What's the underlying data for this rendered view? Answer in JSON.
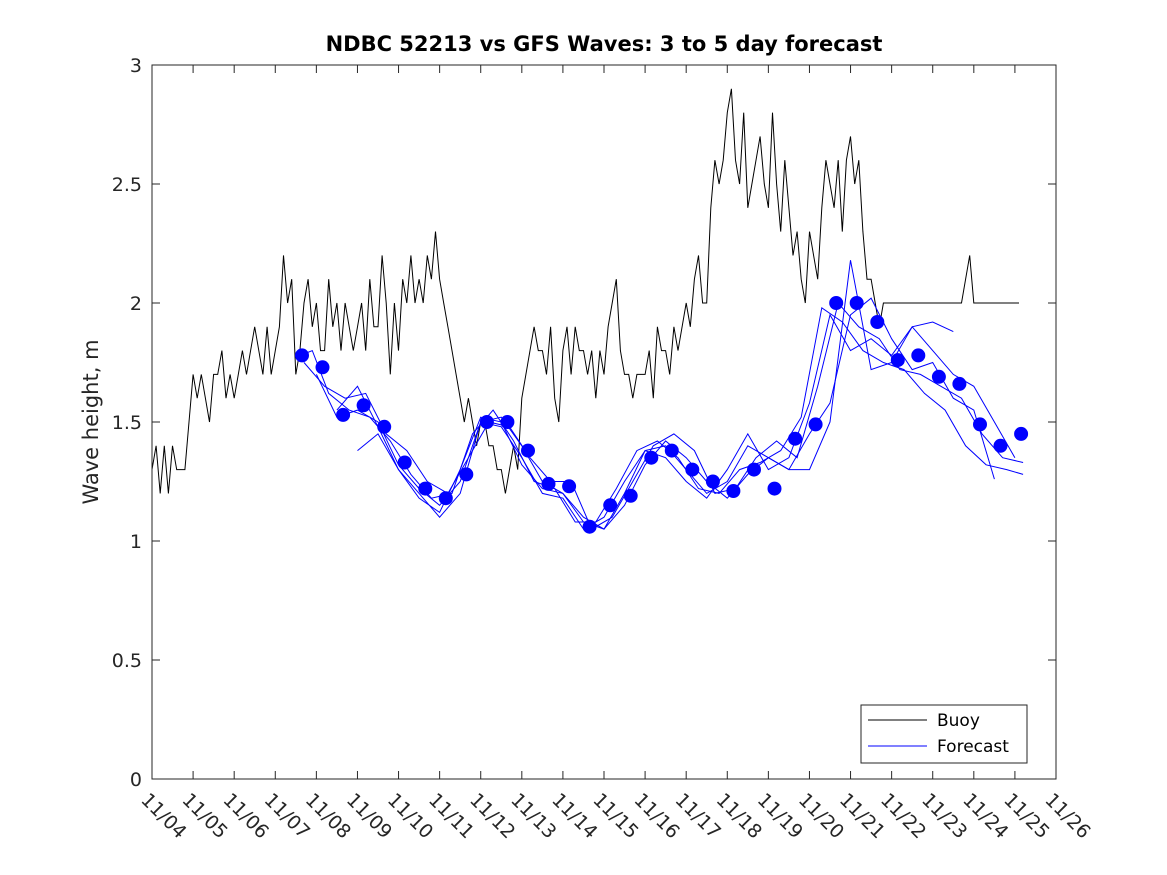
{
  "chart_data": {
    "type": "line",
    "title": "NDBC 52213 vs GFS Waves: 3 to 5 day forecast",
    "xlabel": "",
    "ylabel": "Wave height, m",
    "xlim": [
      0,
      22
    ],
    "ylim": [
      0,
      3
    ],
    "yticks": [
      "0",
      "0.5",
      "1",
      "1.5",
      "2",
      "2.5",
      "3"
    ],
    "xticks": [
      "11/04",
      "11/05",
      "11/06",
      "11/07",
      "11/08",
      "11/09",
      "11/10",
      "11/11",
      "11/12",
      "11/13",
      "11/14",
      "11/15",
      "11/16",
      "11/17",
      "11/18",
      "11/19",
      "11/20",
      "11/21",
      "11/22",
      "11/23",
      "11/24",
      "11/25",
      "11/26"
    ],
    "grid": false,
    "legend": {
      "position": "bottom-right",
      "entries": [
        "Buoy",
        "Forecast"
      ]
    },
    "colors": {
      "buoy": "#000000",
      "forecast": "#0000ff"
    },
    "series": [
      {
        "name": "Buoy",
        "x": [
          0,
          0.1,
          0.2,
          0.3,
          0.4,
          0.5,
          0.6,
          0.7,
          0.8,
          0.9,
          1.0,
          1.1,
          1.2,
          1.3,
          1.4,
          1.5,
          1.6,
          1.7,
          1.8,
          1.9,
          2.0,
          2.1,
          2.2,
          2.3,
          2.4,
          2.5,
          2.6,
          2.7,
          2.8,
          2.9,
          3.0,
          3.1,
          3.2,
          3.3,
          3.4,
          3.5,
          3.6,
          3.7,
          3.8,
          3.9,
          4.0,
          4.1,
          4.2,
          4.3,
          4.4,
          4.5,
          4.6,
          4.7,
          4.8,
          4.9,
          5.0,
          5.1,
          5.2,
          5.3,
          5.4,
          5.5,
          5.6,
          5.7,
          5.8,
          5.9,
          6.0,
          6.1,
          6.2,
          6.3,
          6.4,
          6.5,
          6.6,
          6.7,
          6.8,
          6.9,
          7.0,
          7.1,
          7.2,
          7.3,
          7.4,
          7.5,
          7.6,
          7.7,
          7.8,
          7.9,
          8.0,
          8.1,
          8.2,
          8.3,
          8.4,
          8.5,
          8.6,
          8.7,
          8.8,
          8.9,
          9.0,
          9.1,
          9.2,
          9.3,
          9.4,
          9.5,
          9.6,
          9.7,
          9.8,
          9.9,
          10.0,
          10.1,
          10.2,
          10.3,
          10.4,
          10.5,
          10.6,
          10.7,
          10.8,
          10.9,
          11.0,
          11.1,
          11.2,
          11.3,
          11.4,
          11.5,
          11.6,
          11.7,
          11.8,
          11.9,
          12.0,
          12.1,
          12.2,
          12.3,
          12.4,
          12.5,
          12.6,
          12.7,
          12.8,
          12.9,
          13.0,
          13.1,
          13.2,
          13.3,
          13.4,
          13.5,
          13.6,
          13.7,
          13.8,
          13.9,
          14.0,
          14.1,
          14.2,
          14.3,
          14.4,
          14.5,
          14.6,
          14.7,
          14.8,
          14.9,
          15.0,
          15.1,
          15.2,
          15.3,
          15.4,
          15.5,
          15.6,
          15.7,
          15.8,
          15.9,
          16.0,
          16.1,
          16.2,
          16.3,
          16.4,
          16.5,
          16.6,
          16.7,
          16.8,
          16.9,
          17.0,
          17.1,
          17.2,
          17.3,
          17.4,
          17.5,
          17.6,
          17.7,
          17.8,
          17.9,
          18.0,
          18.1,
          18.2,
          18.3,
          18.4,
          18.5,
          18.6,
          18.7,
          18.8,
          18.9,
          19.0,
          19.1,
          19.2,
          19.3,
          19.4,
          19.5,
          19.6,
          19.7,
          19.8,
          19.9,
          20.0,
          20.1,
          20.2,
          20.3,
          20.4,
          20.5,
          20.6,
          20.7,
          20.8,
          20.9,
          21.0,
          21.1
        ],
        "values": [
          1.3,
          1.4,
          1.2,
          1.4,
          1.2,
          1.4,
          1.3,
          1.3,
          1.3,
          1.5,
          1.7,
          1.6,
          1.7,
          1.6,
          1.5,
          1.7,
          1.7,
          1.8,
          1.6,
          1.7,
          1.6,
          1.7,
          1.8,
          1.7,
          1.8,
          1.9,
          1.8,
          1.7,
          1.9,
          1.7,
          1.8,
          1.9,
          2.2,
          2.0,
          2.1,
          1.7,
          1.8,
          2.0,
          2.1,
          1.9,
          2.0,
          1.8,
          1.8,
          2.1,
          1.9,
          2.0,
          1.8,
          2.0,
          1.9,
          1.8,
          1.9,
          2.0,
          1.8,
          2.1,
          1.9,
          1.9,
          2.2,
          2.0,
          1.7,
          2.0,
          1.8,
          2.1,
          2.0,
          2.2,
          2.0,
          2.1,
          2.0,
          2.2,
          2.1,
          2.3,
          2.1,
          2.0,
          1.9,
          1.8,
          1.7,
          1.6,
          1.5,
          1.6,
          1.5,
          1.4,
          1.5,
          1.5,
          1.4,
          1.4,
          1.3,
          1.3,
          1.2,
          1.3,
          1.4,
          1.3,
          1.6,
          1.7,
          1.8,
          1.9,
          1.8,
          1.8,
          1.7,
          1.9,
          1.6,
          1.5,
          1.8,
          1.9,
          1.7,
          1.9,
          1.8,
          1.8,
          1.7,
          1.8,
          1.6,
          1.8,
          1.7,
          1.9,
          2.0,
          2.1,
          1.8,
          1.7,
          1.7,
          1.6,
          1.7,
          1.7,
          1.7,
          1.8,
          1.6,
          1.9,
          1.8,
          1.8,
          1.7,
          1.9,
          1.8,
          1.9,
          2.0,
          1.9,
          2.1,
          2.2,
          2.0,
          2.0,
          2.4,
          2.6,
          2.5,
          2.6,
          2.8,
          2.9,
          2.6,
          2.5,
          2.8,
          2.4,
          2.5,
          2.6,
          2.7,
          2.5,
          2.4,
          2.8,
          2.5,
          2.3,
          2.6,
          2.4,
          2.2,
          2.3,
          2.1,
          2.0,
          2.3,
          2.2,
          2.1,
          2.4,
          2.6,
          2.5,
          2.4,
          2.6,
          2.3,
          2.6,
          2.7,
          2.5,
          2.6,
          2.3,
          2.1,
          2.1,
          2.0,
          1.9,
          2.0,
          2.0,
          2.0,
          2.0,
          2.0,
          2.0,
          2.0,
          2.0,
          2.0,
          2.0,
          2.0,
          2.0,
          2.0,
          2.0,
          2.0,
          2.0,
          2.0,
          2.0,
          2.0,
          2.0,
          2.1,
          2.2,
          2.0,
          2.0,
          2.0,
          2.0,
          2.0,
          2.0,
          2.0,
          2.0,
          2.0,
          2.0,
          2.0,
          2.0
        ]
      },
      {
        "name": "Forecast",
        "markers": {
          "x": [
            3.65,
            4.15,
            4.65,
            5.15,
            5.65,
            6.15,
            6.65,
            7.15,
            7.65,
            8.15,
            8.65,
            9.15,
            9.65,
            10.15,
            10.65,
            11.15,
            11.65,
            12.15,
            12.65,
            13.15,
            13.65,
            14.15,
            14.65,
            15.15,
            15.65,
            16.15,
            16.65,
            17.15,
            17.65,
            18.15,
            18.65,
            19.15,
            19.65,
            20.15,
            20.65,
            21.15
          ],
          "values": [
            1.78,
            1.73,
            1.53,
            1.57,
            1.48,
            1.33,
            1.22,
            1.18,
            1.28,
            1.5,
            1.5,
            1.38,
            1.24,
            1.23,
            1.06,
            1.15,
            1.19,
            1.35,
            1.38,
            1.3,
            1.25,
            1.21,
            1.3,
            1.22,
            1.43,
            1.49,
            2.0,
            2.0,
            1.92,
            1.76,
            1.78,
            1.69,
            1.66,
            1.49,
            1.4,
            1.45
          ]
        },
        "runs": [
          {
            "x": [
              3.6,
              3.9,
              4.3,
              4.8,
              5.3,
              5.8,
              6.3,
              6.8,
              7.3,
              7.8,
              8.3,
              8.8,
              9.3,
              9.8,
              10.3,
              10.8,
              11.3,
              11.8,
              12.3,
              12.8,
              13.3,
              13.8,
              14.3,
              14.8,
              15.3,
              15.8,
              16.3,
              16.8,
              17.3,
              17.8,
              18.3,
              18.8,
              19.3,
              19.8,
              20.3,
              20.8,
              21.2
            ],
            "values": [
              1.78,
              1.8,
              1.62,
              1.55,
              1.52,
              1.42,
              1.28,
              1.18,
              1.2,
              1.45,
              1.55,
              1.42,
              1.25,
              1.22,
              1.08,
              1.08,
              1.22,
              1.38,
              1.42,
              1.35,
              1.22,
              1.2,
              1.3,
              1.33,
              1.38,
              1.52,
              1.98,
              1.92,
              1.8,
              1.75,
              1.72,
              1.62,
              1.55,
              1.4,
              1.32,
              1.3,
              1.28
            ]
          },
          {
            "x": [
              3.7,
              4.2,
              4.7,
              5.2,
              5.7,
              6.2,
              6.7,
              7.2,
              7.7,
              8.2,
              8.7,
              9.2,
              9.7,
              10.2,
              10.7,
              11.2,
              11.7,
              12.2,
              12.7,
              13.2,
              13.7,
              14.2,
              14.7,
              15.2,
              15.7,
              16.2,
              16.7,
              17.2,
              17.7,
              18.2,
              18.7,
              19.2,
              19.7,
              20.2,
              20.7,
              21.2
            ],
            "values": [
              1.75,
              1.65,
              1.6,
              1.62,
              1.45,
              1.38,
              1.25,
              1.2,
              1.35,
              1.5,
              1.48,
              1.35,
              1.25,
              1.25,
              1.05,
              1.1,
              1.25,
              1.4,
              1.45,
              1.38,
              1.2,
              1.22,
              1.35,
              1.42,
              1.35,
              1.65,
              2.0,
              1.9,
              1.85,
              1.72,
              1.7,
              1.65,
              1.6,
              1.45,
              1.35,
              1.33
            ]
          },
          {
            "x": [
              4.0,
              4.5,
              5.0,
              5.5,
              6.0,
              6.5,
              7.0,
              7.5,
              8.0,
              8.5,
              9.0,
              9.5,
              10.0,
              10.5,
              11.0,
              11.5,
              12.0,
              12.5,
              13.0,
              13.5,
              14.0,
              14.5,
              15.0,
              15.5,
              16.0,
              16.5,
              17.0,
              17.5,
              18.0,
              18.5,
              19.0,
              19.5,
              20.0,
              20.5,
              21.0
            ],
            "values": [
              1.7,
              1.52,
              1.55,
              1.5,
              1.32,
              1.22,
              1.15,
              1.25,
              1.5,
              1.52,
              1.4,
              1.25,
              1.2,
              1.1,
              1.05,
              1.15,
              1.32,
              1.42,
              1.35,
              1.25,
              1.18,
              1.28,
              1.35,
              1.3,
              1.3,
              1.5,
              2.18,
              1.72,
              1.75,
              1.9,
              1.8,
              1.7,
              1.65,
              1.5,
              1.35
            ]
          },
          {
            "x": [
              4.5,
              5.0,
              5.5,
              6.0,
              6.5,
              7.0,
              7.5,
              8.0,
              8.5,
              9.0,
              9.5,
              10.0,
              10.5,
              11.0,
              11.5,
              12.0,
              12.5,
              13.0,
              13.5,
              14.0,
              14.5,
              15.0,
              15.5,
              16.0,
              16.5,
              17.0,
              17.5,
              18.0,
              18.5,
              19.0,
              19.5,
              20.0,
              20.5
            ],
            "values": [
              1.55,
              1.65,
              1.48,
              1.3,
              1.18,
              1.12,
              1.3,
              1.52,
              1.5,
              1.32,
              1.22,
              1.2,
              1.08,
              1.05,
              1.2,
              1.38,
              1.4,
              1.3,
              1.2,
              1.25,
              1.4,
              1.35,
              1.3,
              1.45,
              1.58,
              1.95,
              2.02,
              1.85,
              1.72,
              1.75,
              1.6,
              1.55,
              1.26
            ]
          },
          {
            "x": [
              5.0,
              5.5,
              6.0,
              6.5,
              7.0,
              7.5,
              8.0,
              8.5,
              9.0,
              9.5,
              10.0,
              10.5,
              11.0,
              11.5,
              12.0,
              12.5,
              13.0,
              13.5,
              14.0,
              14.5,
              15.0,
              15.5,
              16.0,
              16.5,
              17.0,
              17.5,
              18.0,
              18.5,
              19.0,
              19.5
            ],
            "values": [
              1.38,
              1.45,
              1.3,
              1.2,
              1.1,
              1.2,
              1.5,
              1.48,
              1.35,
              1.2,
              1.18,
              1.05,
              1.1,
              1.25,
              1.38,
              1.35,
              1.25,
              1.18,
              1.3,
              1.45,
              1.3,
              1.35,
              1.58,
              1.95,
              1.8,
              1.85,
              1.78,
              1.9,
              1.92,
              1.88
            ]
          }
        ]
      }
    ]
  }
}
